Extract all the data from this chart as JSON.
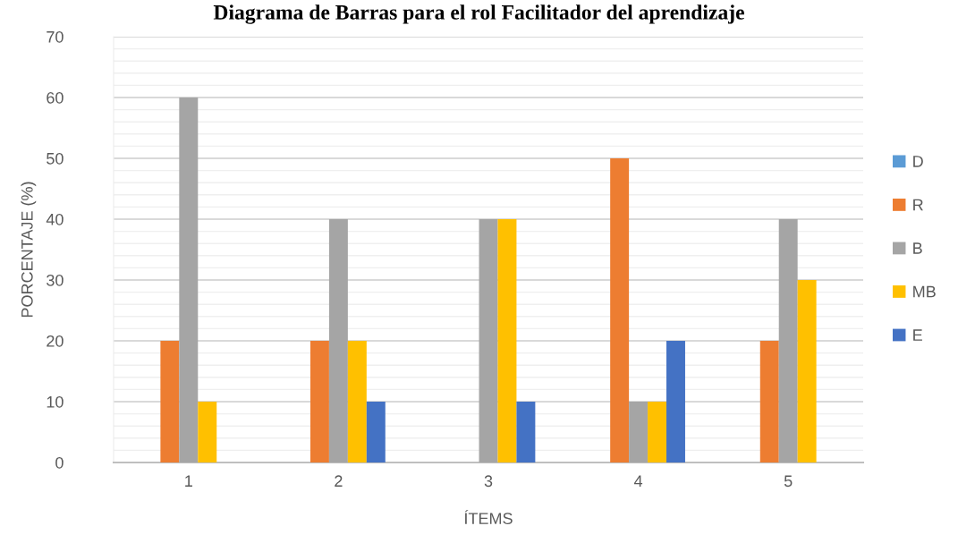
{
  "chart_data": {
    "type": "bar",
    "title": "Diagrama de Barras para el rol Facilitador del aprendizaje",
    "xlabel": "ÍTEMS",
    "ylabel": "PORCENTAJE (%)",
    "categories": [
      "1",
      "2",
      "3",
      "4",
      "5"
    ],
    "series": [
      {
        "name": "D",
        "color": "#5b9bd5",
        "values": [
          0,
          0,
          0,
          0,
          0
        ]
      },
      {
        "name": "R",
        "color": "#ed7d31",
        "values": [
          20,
          20,
          0,
          50,
          20
        ]
      },
      {
        "name": "B",
        "color": "#a5a5a5",
        "values": [
          60,
          40,
          40,
          10,
          40
        ]
      },
      {
        "name": "MB",
        "color": "#ffc000",
        "values": [
          10,
          20,
          40,
          10,
          30
        ]
      },
      {
        "name": "E",
        "color": "#4472c4",
        "values": [
          0,
          10,
          10,
          20,
          0
        ]
      }
    ],
    "ylim": [
      0,
      70
    ],
    "yticks": [
      0,
      {
        "value": 2,
        "label": null
      },
      {
        "value": 4,
        "label": null
      },
      {
        "value": 6,
        "label": null
      },
      {
        "value": 8,
        "label": null
      },
      10,
      {
        "value": 12,
        "label": null
      },
      {
        "value": 14,
        "label": null
      },
      {
        "value": 16,
        "label": null
      },
      {
        "value": 18,
        "label": null
      },
      20,
      {
        "value": 22,
        "label": null
      },
      {
        "value": 24,
        "label": null
      },
      {
        "value": 26,
        "label": null
      },
      {
        "value": 28,
        "label": null
      },
      30,
      {
        "value": 32,
        "label": null
      },
      {
        "value": 34,
        "label": null
      },
      {
        "value": 36,
        "label": null
      },
      {
        "value": 38,
        "label": null
      },
      40,
      {
        "value": 42,
        "label": null
      },
      {
        "value": 44,
        "label": null
      },
      {
        "value": 46,
        "label": null
      },
      {
        "value": 48,
        "label": null
      },
      50,
      {
        "value": 52,
        "label": null
      },
      {
        "value": 54,
        "label": null
      },
      {
        "value": 56,
        "label": null
      },
      {
        "value": 58,
        "label": null
      },
      60,
      {
        "value": 62,
        "label": null
      },
      {
        "value": 64,
        "label": null
      },
      {
        "value": 66,
        "label": null
      },
      {
        "value": 68,
        "label": null
      },
      70
    ],
    "grid": "y",
    "legend": "right"
  }
}
